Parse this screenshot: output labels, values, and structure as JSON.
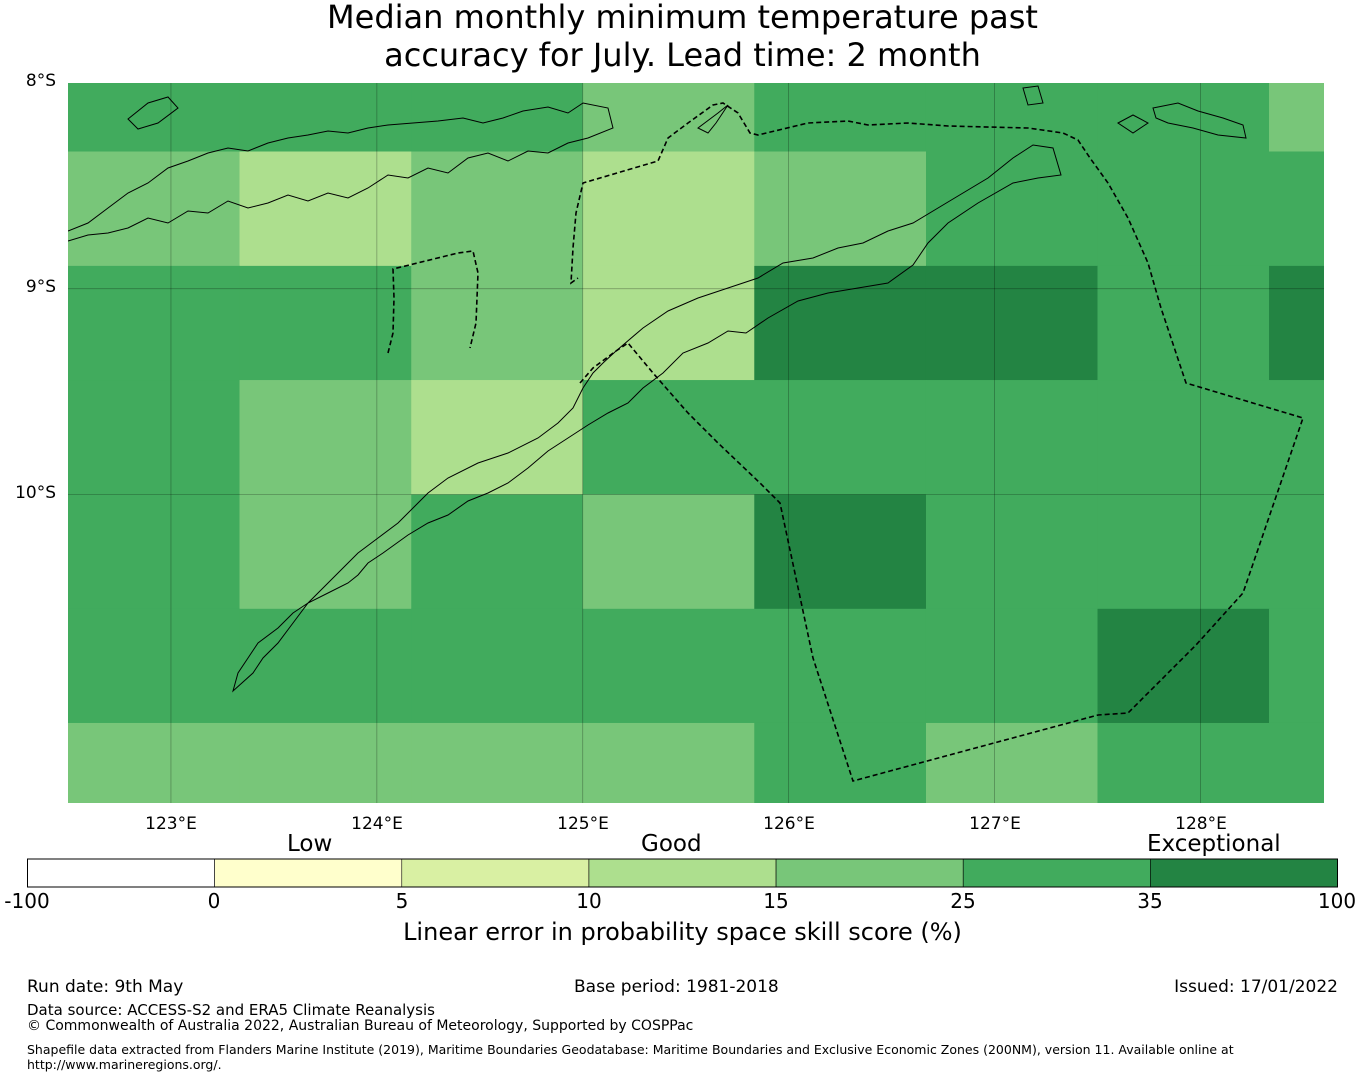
{
  "title": {
    "line1": "Median monthly minimum temperature past",
    "line2": "accuracy for July. Lead time: 2 month"
  },
  "axes": {
    "lat_labels": [
      "8°S",
      "9°S",
      "10°S"
    ],
    "lon_labels": [
      "123°E",
      "124°E",
      "125°E",
      "126°E",
      "127°E",
      "128°E"
    ]
  },
  "map": {
    "lon_range": [
      122.5,
      128.6
    ],
    "lat_range": [
      -8.0,
      -11.5
    ],
    "palette": {
      "10-15": "#addf8e",
      "15-25": "#78c679",
      "25-35": "#41ab5d",
      "35-100": "#238443"
    },
    "rows": [
      {
        "lat_from": -8.0,
        "lat_to": -8.333,
        "cells": [
          "25-35",
          "25-35",
          "25-35",
          "15-25",
          "25-35",
          "25-35",
          "25-35",
          "15-25"
        ]
      },
      {
        "lat_from": -8.333,
        "lat_to": -8.889,
        "cells": [
          "15-25",
          "10-15",
          "15-25",
          "10-15",
          "15-25",
          "25-35",
          "25-35",
          "25-35"
        ]
      },
      {
        "lat_from": -8.889,
        "lat_to": -9.444,
        "cells": [
          "25-35",
          "25-35",
          "15-25",
          "10-15",
          "35-100",
          "35-100",
          "25-35",
          "35-100"
        ]
      },
      {
        "lat_from": -9.444,
        "lat_to": -10.0,
        "cells": [
          "25-35",
          "15-25",
          "10-15",
          "25-35",
          "25-35",
          "25-35",
          "25-35",
          "25-35"
        ]
      },
      {
        "lat_from": -10.0,
        "lat_to": -10.556,
        "cells": [
          "25-35",
          "15-25",
          "25-35",
          "15-25",
          "35-100",
          "25-35",
          "25-35",
          "25-35"
        ]
      },
      {
        "lat_from": -10.556,
        "lat_to": -11.111,
        "cells": [
          "25-35",
          "25-35",
          "25-35",
          "25-35",
          "25-35",
          "25-35",
          "35-100",
          "25-35"
        ]
      },
      {
        "lat_from": -11.111,
        "lat_to": -11.5,
        "cells": [
          "15-25",
          "15-25",
          "15-25",
          "15-25",
          "25-35",
          "15-25",
          "25-35",
          "25-35"
        ]
      }
    ],
    "col_edges": [
      122.5,
      123.333,
      124.167,
      125.0,
      125.833,
      126.667,
      127.5,
      128.333,
      128.6
    ]
  },
  "colorbar": {
    "categories": [
      "Low",
      "Good",
      "Exceptional"
    ],
    "ticks": [
      "-100",
      "0",
      "5",
      "10",
      "15",
      "25",
      "35",
      "100"
    ],
    "colors": [
      "#ffffff",
      "#ffffcc",
      "#d9f0a3",
      "#addf8e",
      "#78c679",
      "#41ab5d",
      "#238443"
    ],
    "label": "Linear error in probability space skill score (%)"
  },
  "footer": {
    "run_date": "Run date: 9th May",
    "base_period": "Base period: 1981-2018",
    "issued": "Issued: 17/01/2022",
    "data_source": "Data source: ACCESS-S2 and ERA5 Climate Reanalysis",
    "copyright": "© Commonwealth of Australia 2022, Australian Bureau of Meteorology, Supported by COSPPac",
    "shapefile_line1": "Shapefile data extracted from Flanders Marine Institute (2019), Maritime Boundaries Geodatabase: Maritime Boundaries and Exclusive Economic Zones (200NM), version 11. Available online at",
    "shapefile_line2": "http://www.marineregions.org/."
  }
}
